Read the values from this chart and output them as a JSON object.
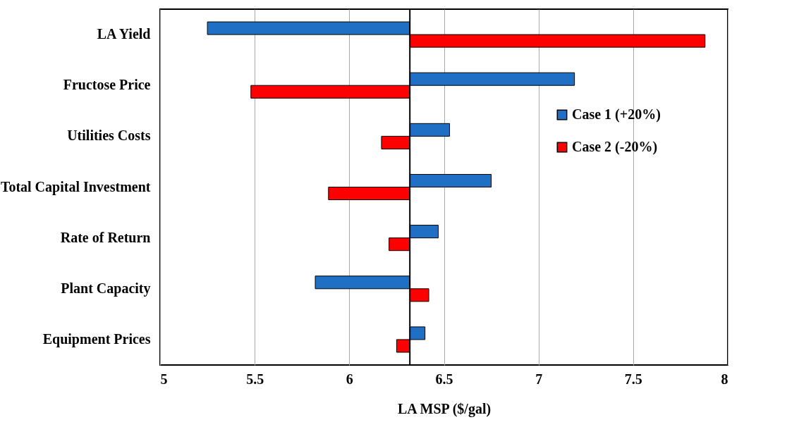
{
  "chart_data": {
    "type": "bar",
    "orientation": "horizontal",
    "xlabel": "LA MSP ($/gal)",
    "categories": [
      "LA Yield",
      "Fructose Price",
      "Utilities Costs",
      "Total Capital Investment",
      "Rate of Return",
      "Plant Capacity",
      "Equipment Prices"
    ],
    "series": [
      {
        "name": "Case 1 (+20%)",
        "color": "#1f6fc4",
        "base": [
          6.32,
          6.32,
          6.32,
          6.32,
          6.32,
          6.32,
          6.32
        ],
        "values": [
          -1.07,
          0.87,
          0.21,
          0.43,
          0.15,
          -0.5,
          0.08
        ]
      },
      {
        "name": "Case 2 (-20%)",
        "color": "#ff0000",
        "base": [
          6.32,
          6.32,
          6.32,
          6.32,
          6.32,
          6.32,
          6.32
        ],
        "values": [
          1.56,
          -0.84,
          -0.15,
          -0.43,
          -0.11,
          0.1,
          -0.07
        ]
      }
    ],
    "xlim": [
      5,
      8
    ],
    "xticks": [
      5,
      5.5,
      6,
      6.5,
      7,
      7.5,
      8
    ],
    "ref_lines": [
      {
        "axis": "x",
        "value": 6.32,
        "label": null
      }
    ],
    "grid": "x",
    "legend": "right"
  }
}
